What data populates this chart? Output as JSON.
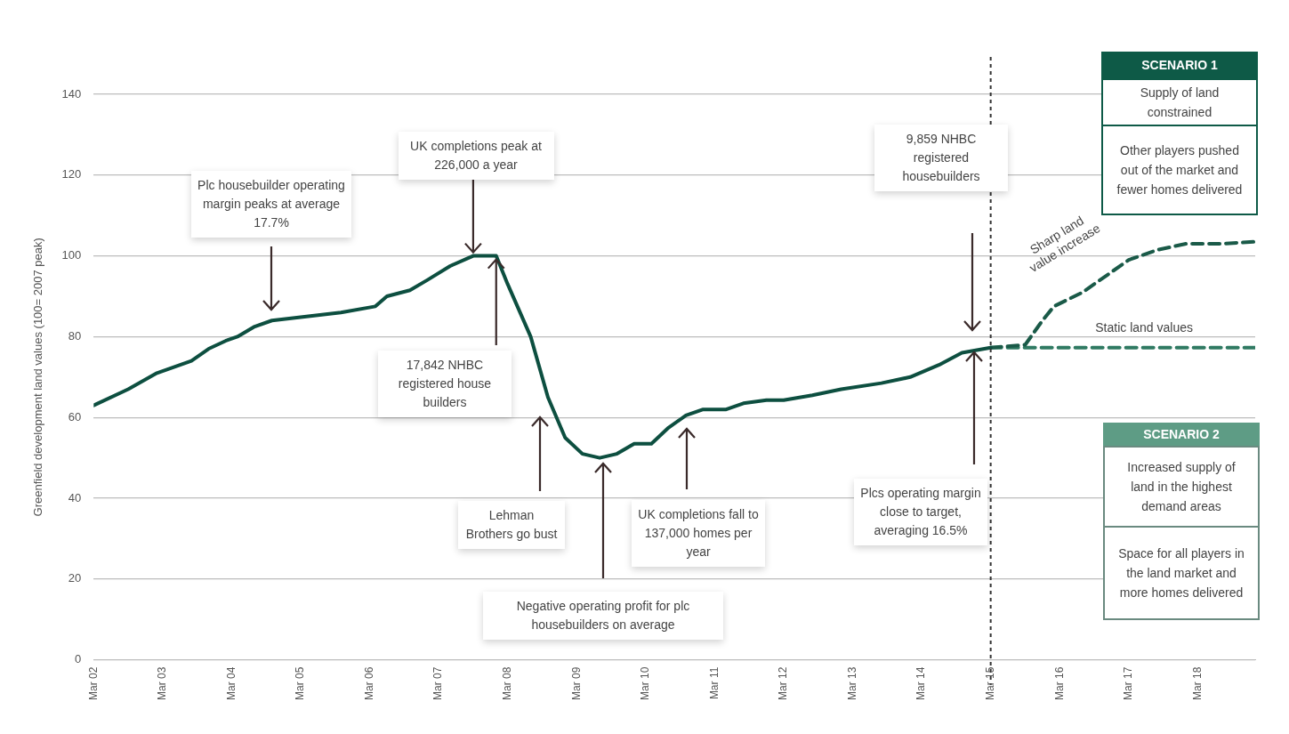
{
  "chart_data": {
    "type": "line",
    "ylabel": "Greenfield development land values (100= 2007 peak)",
    "xlim": [
      "2002-03",
      "2019-01"
    ],
    "ylim": [
      0,
      140
    ],
    "xticks": [
      {
        "value": "2002-03",
        "label": "Mar 02"
      },
      {
        "value": "2003-03",
        "label": "Mar 03"
      },
      {
        "value": "2004-03",
        "label": "Mar 04"
      },
      {
        "value": "2005-03",
        "label": "Mar 05"
      },
      {
        "value": "2006-03",
        "label": "Mar 06"
      },
      {
        "value": "2007-03",
        "label": "Mar 07"
      },
      {
        "value": "2008-03",
        "label": "Mar 08"
      },
      {
        "value": "2009-03",
        "label": "Mar 09"
      },
      {
        "value": "2010-03",
        "label": "Mar 10"
      },
      {
        "value": "2011-03",
        "label": "Mar 11"
      },
      {
        "value": "2012-03",
        "label": "Mar 12"
      },
      {
        "value": "2013-03",
        "label": "Mar 13"
      },
      {
        "value": "2014-03",
        "label": "Mar 14"
      },
      {
        "value": "2015-03",
        "label": "Mar 15"
      },
      {
        "value": "2016-03",
        "label": "Mar 16"
      },
      {
        "value": "2017-03",
        "label": "Mar 17"
      },
      {
        "value": "2018-03",
        "label": "Mar 18"
      }
    ],
    "yticks": [
      0,
      20,
      40,
      60,
      80,
      100,
      120,
      140
    ],
    "grid": "y",
    "legend": false,
    "marker": "none",
    "series": [
      {
        "color": "#0d4f40",
        "line_style": "solid",
        "x": [
          "2002-03",
          "2002-09",
          "2003-02",
          "2003-08",
          "2003-11",
          "2004-02",
          "2004-04",
          "2004-07",
          "2004-10",
          "2005-04",
          "2005-10",
          "2006-04",
          "2006-06",
          "2006-10",
          "2007-01",
          "2007-05",
          "2007-09",
          "2008-01",
          "2008-03",
          "2008-07",
          "2008-10",
          "2009-01",
          "2009-04",
          "2009-07",
          "2009-10",
          "2010-01",
          "2010-04",
          "2010-07",
          "2010-10",
          "2011-01",
          "2011-05",
          "2011-08",
          "2011-12",
          "2012-03",
          "2012-08",
          "2013-01",
          "2013-08",
          "2014-01",
          "2014-06",
          "2014-10",
          "2015-03"
        ],
        "values": [
          63,
          67,
          71,
          74,
          77,
          79,
          80,
          82.5,
          84,
          85,
          86,
          87.5,
          90,
          91.5,
          94,
          97.5,
          100,
          100,
          93,
          80,
          65,
          55,
          51,
          50,
          51,
          53.5,
          53.5,
          57.5,
          60.5,
          62,
          62,
          63.5,
          64.3,
          64.3,
          65.5,
          67,
          68.5,
          70,
          73,
          76,
          77.3
        ]
      },
      {
        "name": "Sharp land value increase",
        "color": "#1a5a48",
        "line_style": "dashed",
        "x": [
          "2015-03",
          "2015-09",
          "2015-12",
          "2016-02",
          "2016-07",
          "2016-11",
          "2017-03",
          "2017-08",
          "2018-01",
          "2018-07",
          "2019-01"
        ],
        "values": [
          77.3,
          78,
          84,
          87.5,
          91,
          95,
          99,
          101.5,
          103,
          103,
          103.5
        ]
      },
      {
        "name": "Static land values",
        "color": "#2f7a62",
        "line_style": "dashed",
        "x": [
          "2015-03",
          "2019-01"
        ],
        "values": [
          77.3,
          77.3
        ]
      }
    ],
    "ref_lines": [
      {
        "axis": "x",
        "value": "2015-03",
        "color": "#333333",
        "line_style": "dotted"
      }
    ],
    "annotations": [
      "Plc housebuilder operating margin peaks at average 17.7%",
      {
        "text": "UK completions peak at 226,000 a year",
        "x": "2007-09",
        "y": 100
      },
      {
        "text": "17,842 NHBC registered house builders",
        "x": "2008-01",
        "y": 100
      },
      "Lehman Brothers go bust",
      "Negative operating profit for plc housebuilders on average",
      "UK completions fall to 137,000 homes per year",
      "9,859 NHBC registered housebuilders",
      "Plcs operating margin close to target, averaging 16.5%",
      "SCENARIO 1",
      "Supply of land constrained",
      "Other players pushed out of the market and fewer homes delivered",
      "SCENARIO 2",
      "Increased supply of land in the highest demand areas",
      "Space for all players in the land market and more homes delivered"
    ]
  }
}
